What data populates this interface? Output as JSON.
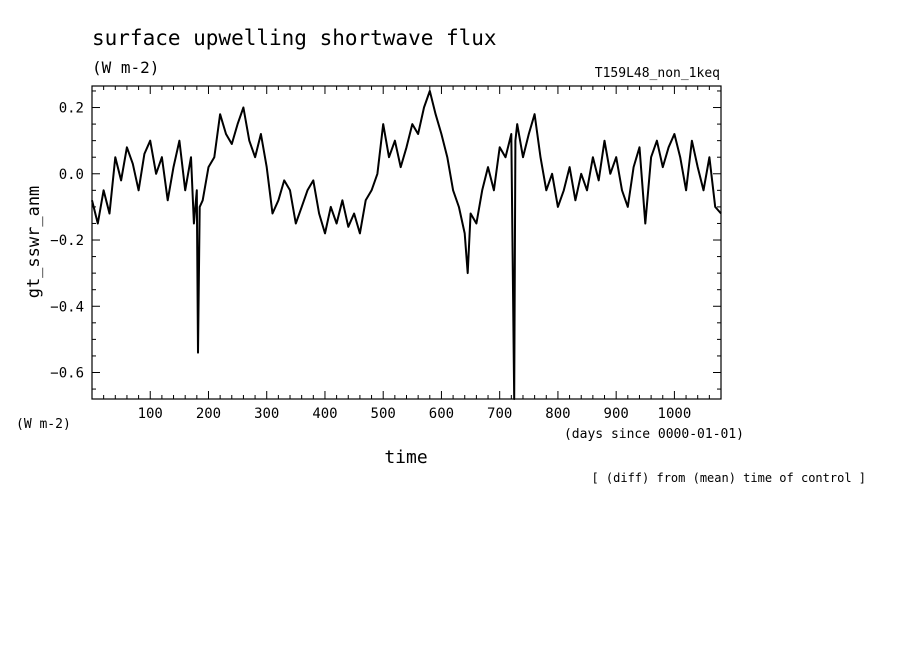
{
  "chart_data": {
    "type": "line",
    "title": "surface upwelling shortwave flux",
    "units": "(W m-2)",
    "run_label": "T159L48_non_1keq",
    "ylabel": "gt_sswr_anm",
    "y_units": "(W m-2)",
    "xlabel": "time",
    "x_units": "(days since 0000-01-01)",
    "footnote": "[ (diff) from (mean) time of control ]",
    "xlim": [
      0,
      1080
    ],
    "ylim": [
      -0.68,
      0.265
    ],
    "x_ticks": [
      100,
      200,
      300,
      400,
      500,
      600,
      700,
      800,
      900,
      1000
    ],
    "y_ticks": [
      0.2,
      0.0,
      -0.2,
      -0.4,
      -0.6
    ],
    "y_tick_labels": [
      "0.2",
      "0.0",
      "−0.2",
      "−0.4",
      "−0.6"
    ],
    "grid": false,
    "series_color": "#000000",
    "series": [
      {
        "x": [
          0,
          10,
          20,
          30,
          40,
          50,
          60,
          70,
          80,
          90,
          100,
          110,
          120,
          130,
          140,
          150,
          160,
          170,
          175,
          180,
          182,
          185,
          190,
          200,
          210,
          220,
          230,
          240,
          250,
          260,
          270,
          280,
          290,
          300,
          310,
          320,
          330,
          340,
          350,
          360,
          370,
          380,
          390,
          400,
          410,
          420,
          430,
          440,
          450,
          460,
          470,
          480,
          490,
          500,
          510,
          520,
          530,
          540,
          550,
          560,
          570,
          580,
          590,
          600,
          610,
          620,
          630,
          640,
          645,
          650,
          660,
          670,
          680,
          690,
          700,
          710,
          720,
          725,
          727,
          730,
          740,
          750,
          760,
          770,
          780,
          790,
          800,
          810,
          820,
          830,
          840,
          850,
          860,
          870,
          880,
          890,
          900,
          910,
          920,
          930,
          940,
          950,
          960,
          970,
          980,
          990,
          1000,
          1010,
          1020,
          1030,
          1040,
          1050,
          1060,
          1070,
          1080
        ],
        "y": [
          -0.08,
          -0.15,
          -0.05,
          -0.12,
          0.05,
          -0.02,
          0.08,
          0.03,
          -0.05,
          0.06,
          0.1,
          0.0,
          0.05,
          -0.08,
          0.02,
          0.1,
          -0.05,
          0.05,
          -0.15,
          -0.05,
          -0.54,
          -0.1,
          -0.08,
          0.02,
          0.05,
          0.18,
          0.12,
          0.09,
          0.15,
          0.2,
          0.1,
          0.05,
          0.12,
          0.02,
          -0.12,
          -0.08,
          -0.02,
          -0.05,
          -0.15,
          -0.1,
          -0.05,
          -0.02,
          -0.12,
          -0.18,
          -0.1,
          -0.15,
          -0.08,
          -0.16,
          -0.12,
          -0.18,
          -0.08,
          -0.05,
          0.0,
          0.15,
          0.05,
          0.1,
          0.02,
          0.08,
          0.15,
          0.12,
          0.2,
          0.25,
          0.18,
          0.12,
          0.05,
          -0.05,
          -0.1,
          -0.18,
          -0.3,
          -0.12,
          -0.15,
          -0.05,
          0.02,
          -0.05,
          0.08,
          0.05,
          0.12,
          -0.68,
          0.1,
          0.15,
          0.05,
          0.12,
          0.18,
          0.05,
          -0.05,
          0.0,
          -0.1,
          -0.05,
          0.02,
          -0.08,
          0.0,
          -0.05,
          0.05,
          -0.02,
          0.1,
          0.0,
          0.05,
          -0.05,
          -0.1,
          0.02,
          0.08,
          -0.15,
          0.05,
          0.1,
          0.02,
          0.08,
          0.12,
          0.05,
          -0.05,
          0.1,
          0.02,
          -0.05,
          0.05,
          -0.1,
          -0.12
        ]
      }
    ]
  }
}
